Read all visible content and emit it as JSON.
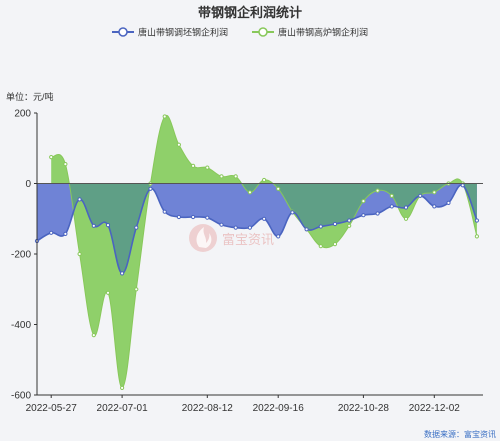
{
  "title": "带钢钢企利润统计",
  "unit_label": "单位：元/吨",
  "source": "数据来源：富宝资讯",
  "watermark": "富宝资讯",
  "colors": {
    "series1_line": "#4a64c0",
    "series1_fill": "#6f83d6",
    "series2_line": "#88c85a",
    "series2_fill": "#8fd06a",
    "overlap_fill": "#5f9f86",
    "zero_line": "#555555",
    "axis": "#333333"
  },
  "chart_data": {
    "type": "area",
    "title": "带钢钢企利润统计",
    "ylabel": "单位：元/吨",
    "ylim": [
      -600,
      200
    ],
    "yticks": [
      200,
      0,
      -200,
      -400,
      -600
    ],
    "xlim": [
      "2022-05-20",
      "2022-12-26"
    ],
    "xtick_labels": [
      "2022-05-27",
      "2022-07-01",
      "2022-08-12",
      "2022-09-16",
      "2022-10-28",
      "2022-12-02"
    ],
    "grid": false,
    "legend_position": "top-center",
    "series": [
      {
        "name": "唐山带钢调坯钢企利润",
        "points": [
          [
            "2022-05-20",
            -163
          ],
          [
            "2022-05-27",
            -140
          ],
          [
            "2022-06-03",
            -143
          ],
          [
            "2022-06-10",
            -45
          ],
          [
            "2022-06-17",
            -120
          ],
          [
            "2022-06-24",
            -118
          ],
          [
            "2022-07-01",
            -255
          ],
          [
            "2022-07-08",
            -125
          ],
          [
            "2022-07-15",
            -15
          ],
          [
            "2022-07-22",
            -80
          ],
          [
            "2022-07-29",
            -95
          ],
          [
            "2022-08-05",
            -95
          ],
          [
            "2022-08-12",
            -97
          ],
          [
            "2022-08-19",
            -117
          ],
          [
            "2022-08-26",
            -125
          ],
          [
            "2022-09-02",
            -125
          ],
          [
            "2022-09-09",
            -100
          ],
          [
            "2022-09-16",
            -150
          ],
          [
            "2022-09-23",
            -82
          ],
          [
            "2022-09-30",
            -130
          ],
          [
            "2022-10-07",
            -122
          ],
          [
            "2022-10-14",
            -115
          ],
          [
            "2022-10-21",
            -105
          ],
          [
            "2022-10-28",
            -90
          ],
          [
            "2022-11-04",
            -85
          ],
          [
            "2022-11-11",
            -65
          ],
          [
            "2022-11-18",
            -68
          ],
          [
            "2022-11-25",
            -35
          ],
          [
            "2022-12-02",
            -65
          ],
          [
            "2022-12-09",
            -55
          ],
          [
            "2022-12-16",
            -5
          ],
          [
            "2022-12-23",
            -105
          ]
        ]
      },
      {
        "name": "唐山带钢高炉钢企利润",
        "points": [
          [
            "2022-05-27",
            75
          ],
          [
            "2022-06-03",
            55
          ],
          [
            "2022-06-10",
            -200
          ],
          [
            "2022-06-17",
            -430
          ],
          [
            "2022-06-24",
            -310
          ],
          [
            "2022-07-01",
            -580
          ],
          [
            "2022-07-08",
            -300
          ],
          [
            "2022-07-15",
            0
          ],
          [
            "2022-07-22",
            190
          ],
          [
            "2022-07-29",
            110
          ],
          [
            "2022-08-05",
            50
          ],
          [
            "2022-08-12",
            45
          ],
          [
            "2022-08-19",
            20
          ],
          [
            "2022-08-26",
            20
          ],
          [
            "2022-09-02",
            -25
          ],
          [
            "2022-09-09",
            10
          ],
          [
            "2022-09-16",
            -15
          ],
          [
            "2022-09-23",
            -80
          ],
          [
            "2022-09-30",
            -130
          ],
          [
            "2022-10-07",
            -178
          ],
          [
            "2022-10-14",
            -172
          ],
          [
            "2022-10-21",
            -120
          ],
          [
            "2022-10-28",
            -50
          ],
          [
            "2022-11-04",
            -20
          ],
          [
            "2022-11-11",
            -35
          ],
          [
            "2022-11-18",
            -100
          ],
          [
            "2022-11-25",
            -35
          ],
          [
            "2022-12-02",
            -25
          ],
          [
            "2022-12-09",
            0
          ],
          [
            "2022-12-16",
            0
          ],
          [
            "2022-12-23",
            -150
          ]
        ]
      }
    ]
  }
}
